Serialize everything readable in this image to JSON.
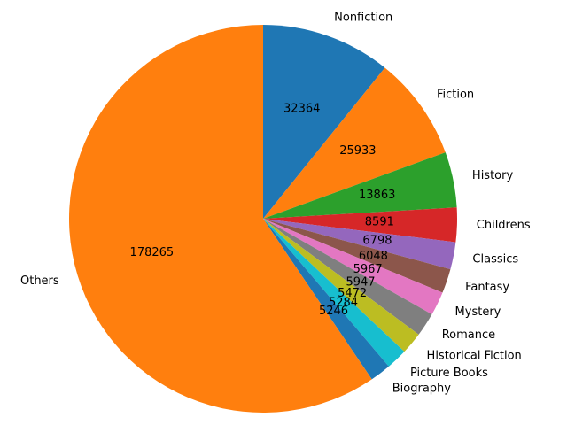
{
  "chart_data": {
    "type": "pie",
    "title": "",
    "start_angle_deg": 90,
    "direction": "clockwise",
    "slices": [
      {
        "label": "Nonfiction",
        "value": 32364,
        "value_label": "32364",
        "color": "#1f77b4"
      },
      {
        "label": "Fiction",
        "value": 25933,
        "value_label": "25933",
        "color": "#ff7f0e"
      },
      {
        "label": "History",
        "value": 13863,
        "value_label": "13863",
        "color": "#2ca02c"
      },
      {
        "label": "Childrens",
        "value": 8591,
        "value_label": "8591",
        "color": "#d62728"
      },
      {
        "label": "Classics",
        "value": 6798,
        "value_label": "6798",
        "color": "#9467bd"
      },
      {
        "label": "Fantasy",
        "value": 6048,
        "value_label": "6048",
        "color": "#8c564b"
      },
      {
        "label": "Mystery",
        "value": 5967,
        "value_label": "5967",
        "color": "#e377c2"
      },
      {
        "label": "Romance",
        "value": 5947,
        "value_label": "5947",
        "color": "#7f7f7f"
      },
      {
        "label": "Historical Fiction",
        "value": 5472,
        "value_label": "5472",
        "color": "#bcbd22"
      },
      {
        "label": "Picture Books",
        "value": 5284,
        "value_label": "5284",
        "color": "#17becf"
      },
      {
        "label": "Biography",
        "value": 5246,
        "value_label": "5246",
        "color": "#1f77b4"
      },
      {
        "label": "Others",
        "value": 178265,
        "value_label": "178265",
        "color": "#ff7f0e"
      }
    ]
  }
}
